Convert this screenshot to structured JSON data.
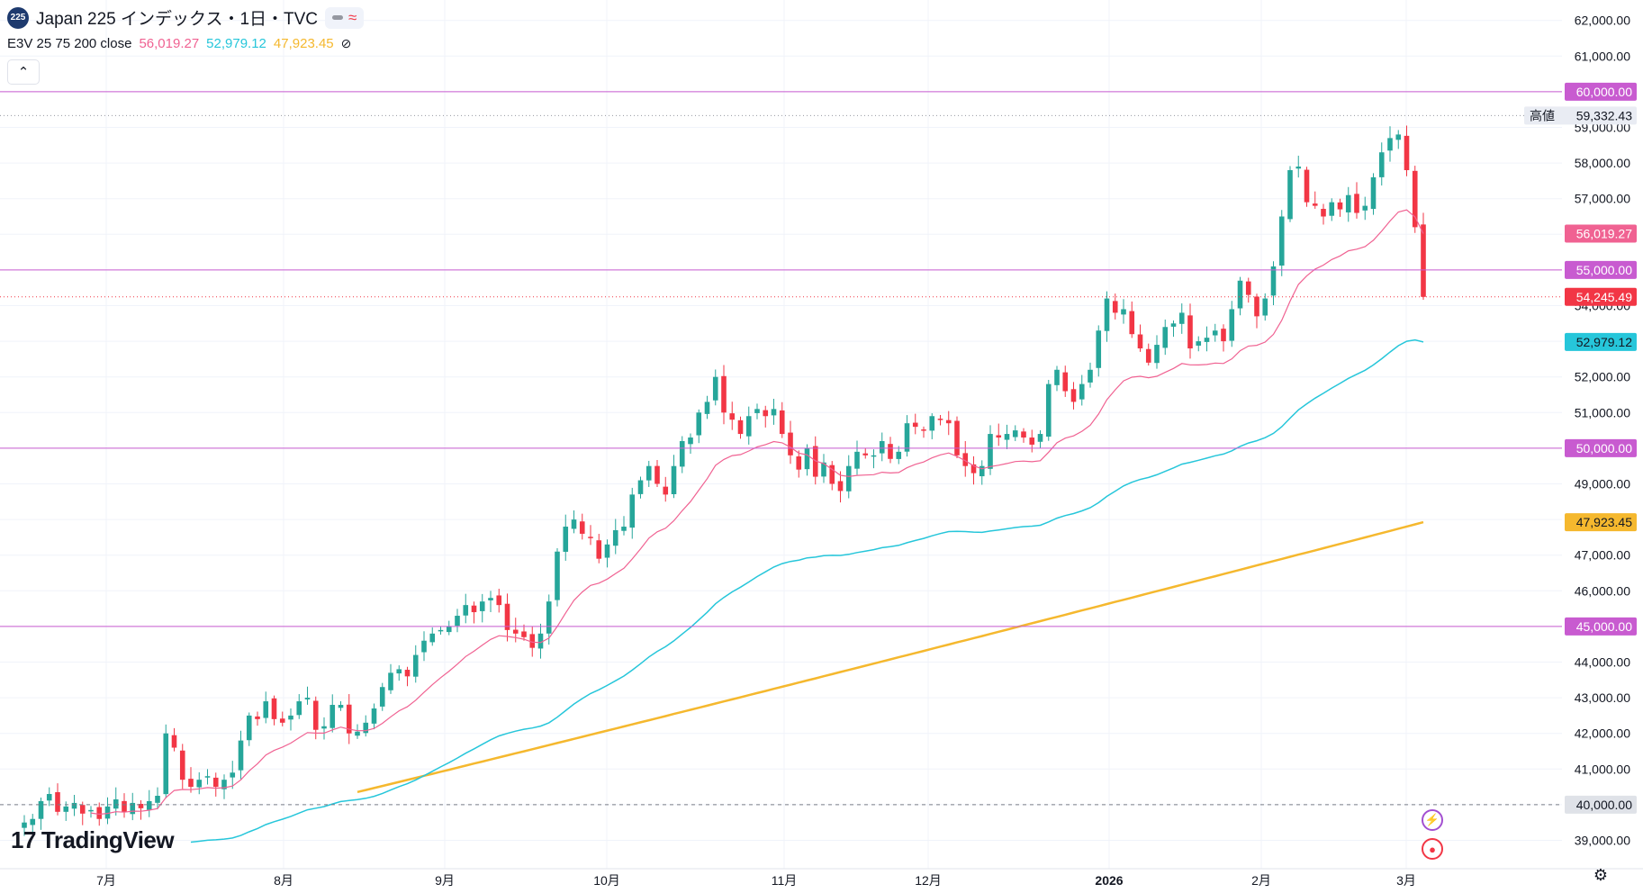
{
  "header": {
    "symbol_badge": "225",
    "title": "Japan 225 インデックス・1日・TVC",
    "legend_label": "E3V 25 75 200 close",
    "ma_short_value": "56,019.27",
    "ma_mid_value": "52,979.12",
    "ma_long_value": "47,923.45"
  },
  "branding": {
    "logo_text": "TradingView",
    "logo_mark": "17"
  },
  "colors": {
    "up": "#26a69a",
    "down": "#f23645",
    "ma_short": "#f06292",
    "ma_mid": "#26c6da",
    "ma_long": "#f5b82e",
    "hline": "#c85bd0",
    "accent_purple": "#a34fd1"
  },
  "chart_data": {
    "type": "candlestick",
    "title": "Japan 225 インデックス・1日・TVC",
    "x_tick_labels": [
      "7月",
      "8月",
      "9月",
      "10月",
      "11月",
      "12月",
      "2026",
      "2月",
      "3月"
    ],
    "y_tick_labels": [
      "39,000.00",
      "40,000.00",
      "41,000.00",
      "42,000.00",
      "43,000.00",
      "44,000.00",
      "45,000.00",
      "46,000.00",
      "47,000.00",
      "48,000.00",
      "49,000.00",
      "50,000.00",
      "51,000.00",
      "52,000.00",
      "53,000.00",
      "54,000.00",
      "55,000.00",
      "56,000.00",
      "57,000.00",
      "58,000.00",
      "59,000.00",
      "60,000.00",
      "61,000.00",
      "62,000.00"
    ],
    "y_range": [
      38300,
      62400
    ],
    "horizontal_lines": [
      {
        "value": 60000,
        "label": "60,000.00"
      },
      {
        "value": 55000,
        "label": "55,000.00"
      },
      {
        "value": 50000,
        "label": "50,000.00"
      },
      {
        "value": 45000,
        "label": "45,000.00"
      },
      {
        "value": 40000,
        "label": "40,000.00",
        "style": "dashed"
      }
    ],
    "high_marker": {
      "label": "高値",
      "value": 59332.43,
      "value_label": "59,332.43"
    },
    "last_price": {
      "value": 54245.49,
      "value_label": "54,245.49"
    },
    "series": [
      {
        "name": "E3V 25",
        "last": 56019.27,
        "last_label": "56,019.27"
      },
      {
        "name": "E3V 75",
        "last": 52979.12,
        "last_label": "52,979.12"
      },
      {
        "name": "E3V 200",
        "last": 47923.45,
        "last_label": "47,923.45"
      }
    ],
    "ohlc_close": [
      39500,
      39600,
      40100,
      40300,
      39800,
      39950,
      40050,
      39750,
      39850,
      39600,
      39950,
      40150,
      39800,
      40050,
      39900,
      40100,
      40250,
      42000,
      41600,
      40700,
      40500,
      40700,
      40800,
      40500,
      40700,
      40900,
      41800,
      42500,
      42400,
      42900,
      42400,
      42300,
      42500,
      42900,
      43000,
      42100,
      42200,
      42800,
      42800,
      42000,
      42050,
      42300,
      42700,
      43300,
      43700,
      43800,
      43600,
      44200,
      44600,
      44800,
      44900,
      45000,
      45300,
      45600,
      45400,
      45700,
      45800,
      45600,
      44900,
      44800,
      44700,
      44400,
      44800,
      45700,
      47100,
      47800,
      48000,
      47600,
      47500,
      46900,
      47300,
      47700,
      47800,
      48700,
      49100,
      49500,
      49000,
      48700,
      49500,
      50200,
      50300,
      51000,
      51300,
      52000,
      51000,
      50800,
      50400,
      50900,
      51100,
      50900,
      51100,
      50400,
      49800,
      49400,
      50000,
      49200,
      49600,
      49000,
      48800,
      49500,
      49900,
      49800,
      49800,
      50200,
      49700,
      49900,
      50700,
      50600,
      50500,
      50900,
      50800,
      50700,
      49800,
      49500,
      49300,
      49500,
      50400,
      50300,
      50400,
      50500,
      50300,
      50100,
      50400,
      51800,
      52200,
      51600,
      51300,
      51800,
      52200,
      53300,
      54200,
      53800,
      53900,
      53200,
      52800,
      52400,
      52900,
      53400,
      53500,
      53800,
      52800,
      53000,
      53100,
      53300,
      53000,
      53900,
      54700,
      54300,
      53700,
      54200,
      55100,
      56500,
      57800,
      57900,
      56900,
      56800,
      56500,
      56900,
      56700,
      57100,
      56600,
      56800,
      57600,
      58300,
      58700,
      58800,
      57800,
      56200,
      54245
    ]
  },
  "side_icons": {
    "top": "lightning-icon",
    "bottom": "record-icon",
    "settings": "settings-icon"
  }
}
